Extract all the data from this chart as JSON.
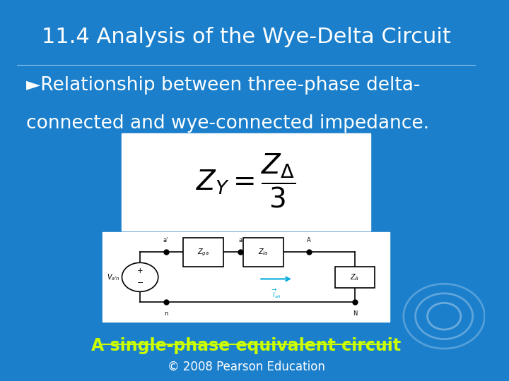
{
  "title": "11.4 Analysis of the Wye-Delta Circuit",
  "title_color": "#FFFFFF",
  "title_fontsize": 22,
  "bg_color": "#1B7FCC",
  "bullet_text_line1": "►Relationship between three-phase delta-",
  "bullet_text_line2": "connected and wye-connected impedance.",
  "bullet_color": "#FFFFFF",
  "bullet_fontsize": 19,
  "link_text": "A single-phase equivalent circuit",
  "link_color": "#CCFF00",
  "link_fontsize": 17,
  "copyright_text": "© 2008 Pearson Education",
  "copyright_color": "#FFFFFF",
  "copyright_fontsize": 12
}
